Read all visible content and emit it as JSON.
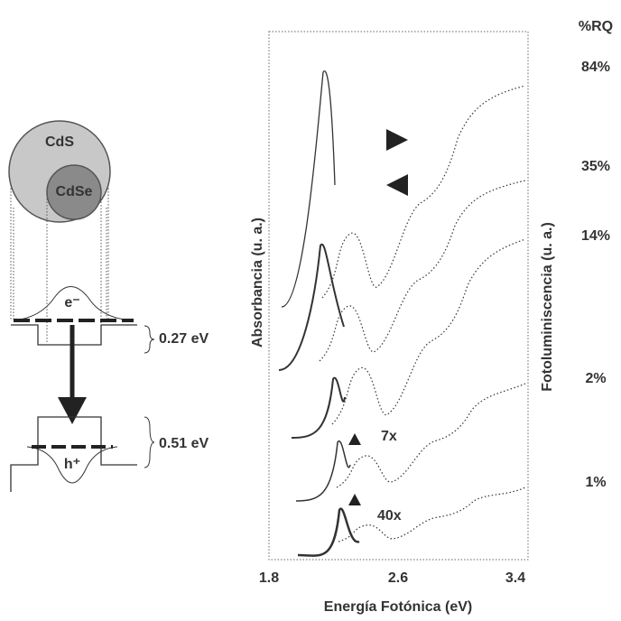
{
  "diagram": {
    "shell_label": "CdS",
    "core_label": "CdSe",
    "electron_label": "e⁻",
    "hole_label": "h⁺",
    "conduction_offset": "0.27 eV",
    "valence_offset": "0.51 eV"
  },
  "spectra": {
    "x_axis_label": "Energía Fotónica (eV)",
    "x_tick_labels": [
      "1.8",
      "2.6",
      "3.4"
    ],
    "left_axis_label": "Absorbancia (u. a.)",
    "right_axis_label": "Fotoluminiscencia (u. a.)",
    "qy_header": "%RQ",
    "qy_labels": [
      "84%",
      "35%",
      "14%",
      "2%",
      "1%"
    ],
    "magnifications": [
      "7x",
      "40x"
    ]
  }
}
